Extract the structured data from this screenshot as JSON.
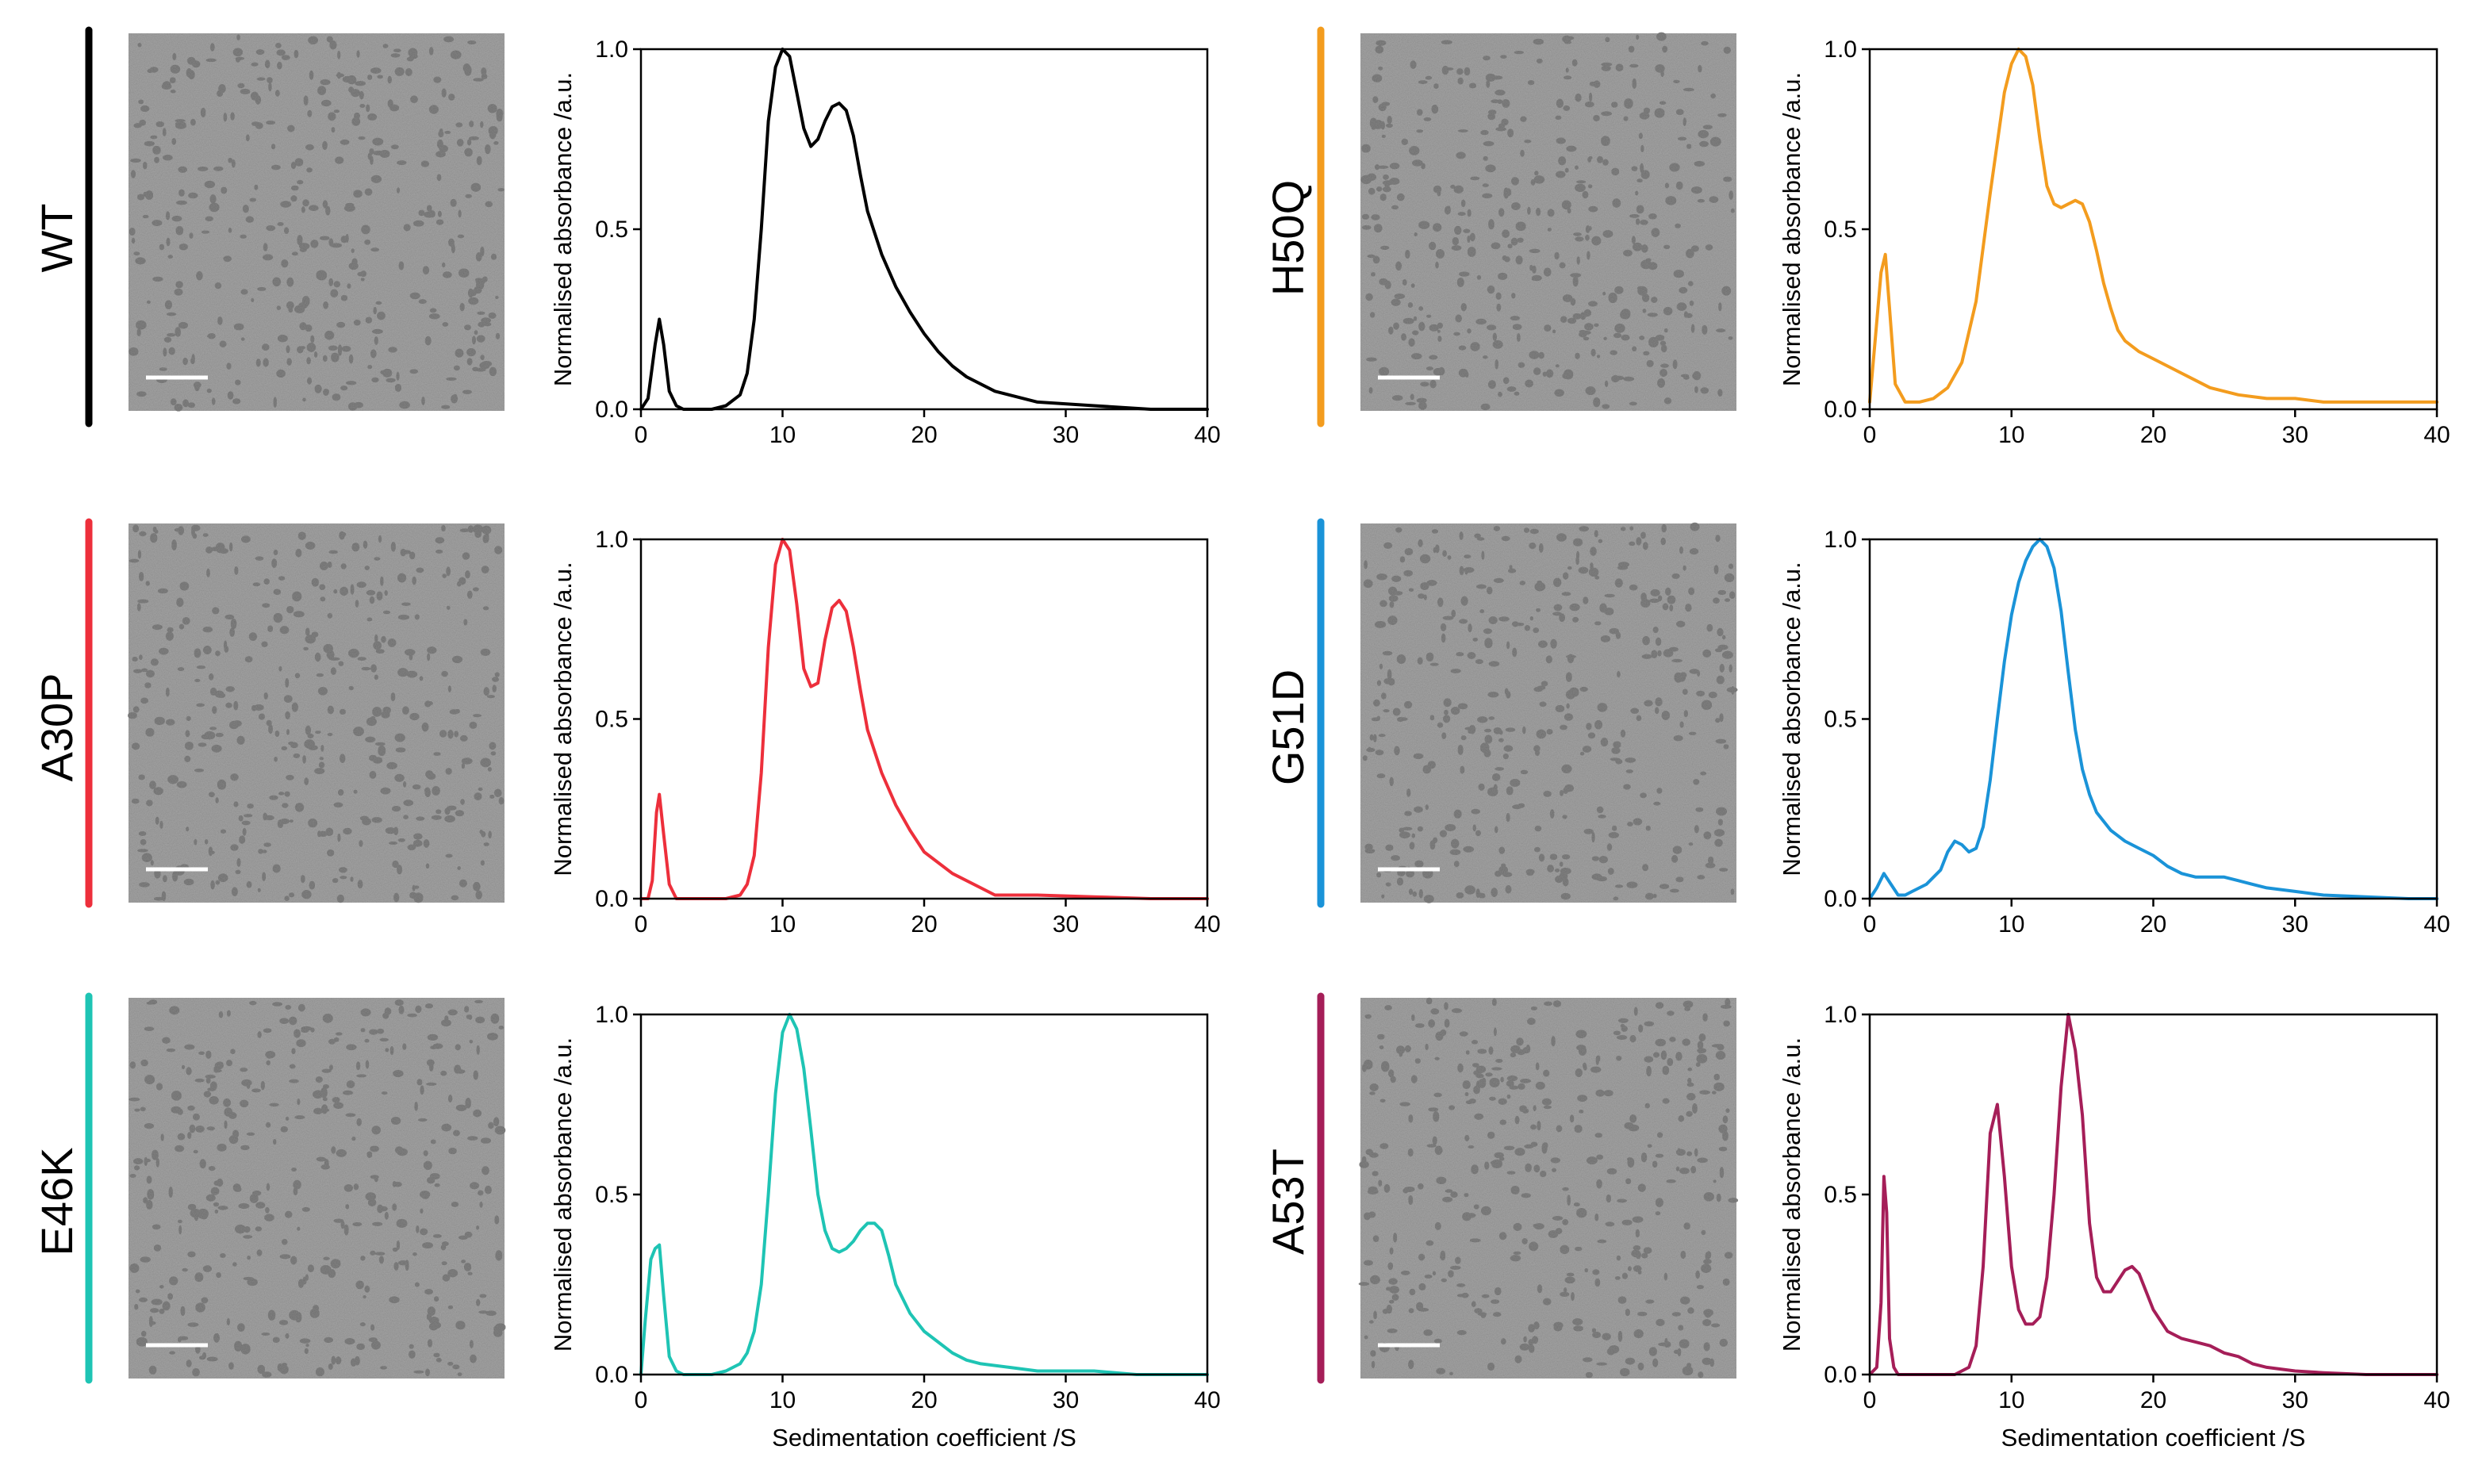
{
  "figure": {
    "panels": [
      {
        "variant": "WT",
        "color": "#000000"
      },
      {
        "variant": "H50Q",
        "color": "#f39c1e"
      },
      {
        "variant": "A30P",
        "color": "#ed2f3b"
      },
      {
        "variant": "G51D",
        "color": "#1a93d8"
      },
      {
        "variant": "E46K",
        "color": "#1ec4b4"
      },
      {
        "variant": "A53T",
        "color": "#a51e58"
      }
    ],
    "micrograph_background": "#8f8f8f",
    "particle_color": "#585858",
    "scale_bar_color": "#ffffff"
  },
  "chart_data": [
    {
      "type": "line",
      "variant": "WT",
      "color": "#000000",
      "title": "",
      "xlabel": "",
      "ylabel": "Normalised absorbance /a.u.",
      "xlim": [
        0,
        40
      ],
      "ylim": [
        0,
        1.0
      ],
      "xticks": [
        "0",
        "10",
        "20",
        "30",
        "40"
      ],
      "yticks": [
        "0.0",
        "0.5",
        "1.0"
      ],
      "series": [
        {
          "name": "WT",
          "x": [
            0,
            0.5,
            1,
            1.3,
            1.6,
            2,
            2.5,
            3,
            4,
            5,
            6,
            7,
            7.5,
            8,
            8.5,
            9,
            9.5,
            10,
            10.5,
            11,
            11.5,
            12,
            12.5,
            13,
            13.5,
            14,
            14.5,
            15,
            15.5,
            16,
            17,
            18,
            19,
            20,
            21,
            22,
            23,
            25,
            28,
            32,
            36,
            40
          ],
          "y": [
            0,
            0.03,
            0.18,
            0.25,
            0.18,
            0.05,
            0.01,
            0,
            0,
            0,
            0.01,
            0.04,
            0.1,
            0.25,
            0.5,
            0.8,
            0.95,
            1.0,
            0.98,
            0.88,
            0.78,
            0.73,
            0.75,
            0.8,
            0.84,
            0.85,
            0.83,
            0.76,
            0.65,
            0.55,
            0.43,
            0.34,
            0.27,
            0.21,
            0.16,
            0.12,
            0.09,
            0.05,
            0.02,
            0.01,
            0,
            0
          ]
        }
      ]
    },
    {
      "type": "line",
      "variant": "H50Q",
      "color": "#f39c1e",
      "title": "",
      "xlabel": "",
      "ylabel": "Normalised absorbance /a.u.",
      "xlim": [
        0,
        40
      ],
      "ylim": [
        0,
        1.0
      ],
      "xticks": [
        "0",
        "10",
        "20",
        "30",
        "40"
      ],
      "yticks": [
        "0.0",
        "0.5",
        "1.0"
      ],
      "series": [
        {
          "name": "H50Q",
          "x": [
            0,
            0.4,
            0.8,
            1.1,
            1.4,
            1.8,
            2.5,
            3.5,
            4.5,
            5.5,
            6.5,
            7.5,
            8.5,
            9.5,
            10,
            10.5,
            11,
            11.5,
            12,
            12.5,
            13,
            13.5,
            14,
            14.5,
            15,
            15.5,
            16,
            16.5,
            17,
            17.5,
            18,
            19,
            20,
            21,
            22,
            23,
            24,
            25,
            26,
            28,
            30,
            32,
            34,
            36,
            38,
            40
          ],
          "y": [
            0.02,
            0.2,
            0.38,
            0.43,
            0.28,
            0.07,
            0.02,
            0.02,
            0.03,
            0.06,
            0.13,
            0.3,
            0.6,
            0.88,
            0.96,
            1.0,
            0.98,
            0.9,
            0.75,
            0.62,
            0.57,
            0.56,
            0.57,
            0.58,
            0.57,
            0.52,
            0.44,
            0.35,
            0.28,
            0.22,
            0.19,
            0.16,
            0.14,
            0.12,
            0.1,
            0.08,
            0.06,
            0.05,
            0.04,
            0.03,
            0.03,
            0.02,
            0.02,
            0.02,
            0.02,
            0.02
          ]
        }
      ]
    },
    {
      "type": "line",
      "variant": "A30P",
      "color": "#ed2f3b",
      "title": "",
      "xlabel": "",
      "ylabel": "Normalised absorbance /a.u.",
      "xlim": [
        0,
        40
      ],
      "ylim": [
        0,
        1.0
      ],
      "xticks": [
        "0",
        "10",
        "20",
        "30",
        "40"
      ],
      "yticks": [
        "0.0",
        "0.5",
        "1.0"
      ],
      "series": [
        {
          "name": "A30P",
          "x": [
            0,
            0.5,
            0.8,
            1.1,
            1.3,
            1.6,
            2,
            2.5,
            3,
            4,
            5,
            6,
            7,
            7.5,
            8,
            8.5,
            9,
            9.5,
            10,
            10.5,
            11,
            11.5,
            12,
            12.5,
            13,
            13.5,
            14,
            14.5,
            15,
            15.5,
            16,
            17,
            18,
            19,
            20,
            22,
            24,
            25,
            28,
            32,
            36,
            40
          ],
          "y": [
            0,
            0,
            0.05,
            0.24,
            0.29,
            0.18,
            0.04,
            0,
            0,
            0,
            0,
            0,
            0.01,
            0.04,
            0.12,
            0.35,
            0.7,
            0.93,
            1.0,
            0.97,
            0.82,
            0.64,
            0.59,
            0.6,
            0.72,
            0.81,
            0.83,
            0.8,
            0.7,
            0.58,
            0.47,
            0.35,
            0.26,
            0.19,
            0.13,
            0.07,
            0.03,
            0.01,
            0.01,
            0.005,
            0,
            0
          ]
        }
      ]
    },
    {
      "type": "line",
      "variant": "G51D",
      "color": "#1a93d8",
      "title": "",
      "xlabel": "",
      "ylabel": "Normalised absorbance /a.u.",
      "xlim": [
        0,
        40
      ],
      "ylim": [
        0,
        1.0
      ],
      "xticks": [
        "0",
        "10",
        "20",
        "30",
        "40"
      ],
      "yticks": [
        "0.0",
        "0.5",
        "1.0"
      ],
      "series": [
        {
          "name": "G51D",
          "x": [
            0,
            0.5,
            1,
            1.5,
            2,
            2.5,
            3,
            4,
            5,
            5.5,
            6,
            6.5,
            7,
            7.5,
            8,
            8.5,
            9,
            9.5,
            10,
            10.5,
            11,
            11.5,
            12,
            12.5,
            13,
            13.5,
            14,
            14.5,
            15,
            15.5,
            16,
            17,
            18,
            19,
            20,
            21,
            22,
            23,
            24,
            25,
            26,
            27,
            28,
            30,
            32,
            35,
            38,
            40
          ],
          "y": [
            0,
            0.03,
            0.07,
            0.04,
            0.01,
            0.01,
            0.02,
            0.04,
            0.08,
            0.13,
            0.16,
            0.15,
            0.13,
            0.14,
            0.2,
            0.33,
            0.5,
            0.66,
            0.79,
            0.88,
            0.94,
            0.98,
            1.0,
            0.98,
            0.92,
            0.8,
            0.63,
            0.47,
            0.36,
            0.29,
            0.24,
            0.19,
            0.16,
            0.14,
            0.12,
            0.09,
            0.07,
            0.06,
            0.06,
            0.06,
            0.05,
            0.04,
            0.03,
            0.02,
            0.01,
            0.005,
            0,
            0
          ]
        }
      ]
    },
    {
      "type": "line",
      "variant": "E46K",
      "color": "#1ec4b4",
      "title": "",
      "xlabel": "Sedimentation coefficient /S",
      "ylabel": "Normalised absorbance /a.u.",
      "xlim": [
        0,
        40
      ],
      "ylim": [
        0,
        1.0
      ],
      "xticks": [
        "0",
        "10",
        "20",
        "30",
        "40"
      ],
      "yticks": [
        "0.0",
        "0.5",
        "1.0"
      ],
      "series": [
        {
          "name": "E46K",
          "x": [
            0,
            0.3,
            0.7,
            1,
            1.3,
            1.6,
            2,
            2.5,
            3,
            4,
            5,
            6,
            7,
            7.5,
            8,
            8.5,
            9,
            9.5,
            10,
            10.5,
            11,
            11.5,
            12,
            12.5,
            13,
            13.5,
            14,
            14.5,
            15,
            15.5,
            16,
            16.5,
            17,
            17.5,
            18,
            19,
            20,
            21,
            22,
            23,
            24,
            26,
            28,
            30,
            32,
            35,
            38,
            40
          ],
          "y": [
            0,
            0.15,
            0.32,
            0.35,
            0.36,
            0.22,
            0.05,
            0.01,
            0,
            0,
            0,
            0.01,
            0.03,
            0.06,
            0.12,
            0.25,
            0.5,
            0.78,
            0.95,
            1.0,
            0.96,
            0.85,
            0.68,
            0.5,
            0.4,
            0.35,
            0.34,
            0.35,
            0.37,
            0.4,
            0.42,
            0.42,
            0.4,
            0.33,
            0.25,
            0.17,
            0.12,
            0.09,
            0.06,
            0.04,
            0.03,
            0.02,
            0.01,
            0.01,
            0.01,
            0,
            0,
            0
          ]
        }
      ]
    },
    {
      "type": "line",
      "variant": "A53T",
      "color": "#a51e58",
      "title": "",
      "xlabel": "Sedimentation coefficient /S",
      "ylabel": "Normalised absorbance /a.u.",
      "xlim": [
        0,
        40
      ],
      "ylim": [
        0,
        1.0
      ],
      "xticks": [
        "0",
        "10",
        "20",
        "30",
        "40"
      ],
      "yticks": [
        "0.0",
        "0.5",
        "1.0"
      ],
      "series": [
        {
          "name": "A53T",
          "x": [
            0,
            0.5,
            0.8,
            1,
            1.2,
            1.4,
            1.7,
            2,
            3,
            4,
            5,
            6,
            7,
            7.5,
            8,
            8.5,
            9,
            9.5,
            10,
            10.5,
            11,
            11.5,
            12,
            12.5,
            13,
            13.5,
            14,
            14.5,
            15,
            15.5,
            16,
            16.5,
            17,
            17.5,
            18,
            18.5,
            19,
            20,
            21,
            22,
            23,
            24,
            25,
            26,
            27,
            28,
            30,
            32,
            35,
            38,
            40
          ],
          "y": [
            0,
            0.02,
            0.2,
            0.55,
            0.45,
            0.1,
            0.02,
            0,
            0,
            0,
            0,
            0,
            0.02,
            0.08,
            0.3,
            0.67,
            0.75,
            0.55,
            0.3,
            0.18,
            0.14,
            0.14,
            0.16,
            0.27,
            0.5,
            0.8,
            1.0,
            0.9,
            0.72,
            0.42,
            0.27,
            0.23,
            0.23,
            0.26,
            0.29,
            0.3,
            0.28,
            0.18,
            0.12,
            0.1,
            0.09,
            0.08,
            0.06,
            0.05,
            0.03,
            0.02,
            0.01,
            0.005,
            0,
            0,
            0
          ]
        }
      ]
    }
  ]
}
